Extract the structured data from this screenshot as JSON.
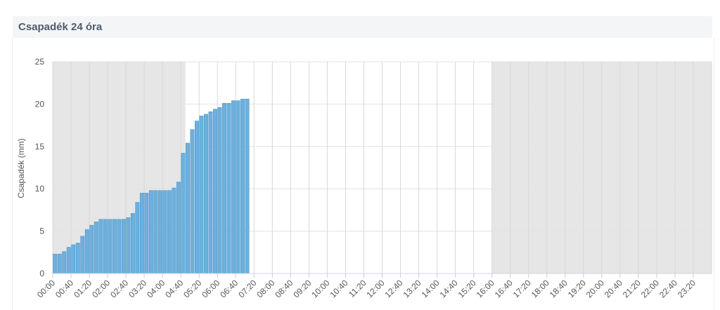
{
  "header": {
    "title": "Csapadék 24 óra"
  },
  "chart_data": {
    "type": "bar",
    "y_label": "Csapadék (mm)",
    "categories": [
      "00:00",
      null,
      null,
      null,
      "00:40",
      null,
      null,
      null,
      "01:20",
      null,
      null,
      null,
      "02:00",
      null,
      null,
      null,
      "02:40",
      null,
      null,
      null,
      "03:20",
      null,
      null,
      null,
      "04:00",
      null,
      null,
      null,
      "04:40",
      null,
      null,
      null,
      "05:20",
      null,
      null,
      null,
      "06:00",
      null,
      null,
      null,
      "06:40",
      null,
      null,
      null,
      "07:20",
      null,
      null,
      null,
      "08:00",
      null,
      null,
      null,
      "08:40",
      null,
      null,
      null,
      "09:20",
      null,
      null,
      null,
      "10:00",
      null,
      null,
      null,
      "10:40",
      null,
      null,
      null,
      "11:20",
      null,
      null,
      null,
      "12:00",
      null,
      null,
      null,
      "12:40",
      null,
      null,
      null,
      "13:20",
      null,
      null,
      null,
      "14:00",
      null,
      null,
      null,
      "14:40",
      null,
      null,
      null,
      "15:20",
      null,
      null,
      null,
      "16:00",
      null,
      null,
      null,
      "16:40",
      null,
      null,
      null,
      "17:20",
      null,
      null,
      null,
      "18:00",
      null,
      null,
      null,
      "18:40",
      null,
      null,
      null,
      "19:20",
      null,
      null,
      null,
      "20:00",
      null,
      null,
      null,
      "20:40",
      null,
      null,
      null,
      "21:20",
      null,
      null,
      null,
      "22:00",
      null,
      null,
      null,
      "22:40",
      null,
      null,
      null,
      "23:20",
      null,
      null,
      null
    ],
    "values": [
      2.3,
      2.3,
      2.6,
      3.1,
      3.4,
      3.6,
      4.4,
      5.2,
      5.7,
      6.1,
      6.4,
      6.4,
      6.4,
      6.4,
      6.4,
      6.4,
      6.6,
      7.1,
      8.4,
      9.5,
      9.5,
      9.8,
      9.8,
      9.8,
      9.8,
      9.8,
      10.1,
      10.8,
      14.2,
      15.4,
      17.0,
      18.0,
      18.6,
      18.8,
      19.1,
      19.4,
      19.6,
      20.1,
      20.1,
      20.4,
      20.4,
      20.6,
      20.6,
      null,
      null,
      null,
      null,
      null,
      null,
      null,
      null,
      null,
      null,
      null,
      null,
      null,
      null,
      null,
      null,
      null,
      null,
      null,
      null,
      null,
      null,
      null,
      null,
      null,
      null,
      null,
      null,
      null,
      null,
      null,
      null,
      null,
      null,
      null,
      null,
      null,
      null,
      null,
      null,
      null,
      null,
      null,
      null,
      null,
      null,
      null,
      null,
      null,
      null,
      null,
      null,
      null,
      null,
      null,
      null,
      null,
      null,
      null,
      null,
      null,
      null,
      null,
      null,
      null,
      null,
      null,
      null,
      null,
      null,
      null,
      null,
      null,
      null,
      null,
      null,
      null,
      null,
      null,
      null,
      null,
      null,
      null,
      null,
      null,
      null,
      null,
      null,
      null,
      null,
      null,
      null,
      null,
      null,
      null,
      null,
      null,
      null,
      null,
      null,
      null
    ],
    "color": "#6db0dd",
    "ylim": [
      0,
      25
    ],
    "yticks": [
      0,
      5,
      10,
      15,
      20,
      25
    ],
    "grid": true,
    "night_bands": [
      {
        "from": "00:00",
        "to": "04:50"
      },
      {
        "from": "16:00",
        "to": "24:00"
      }
    ]
  }
}
